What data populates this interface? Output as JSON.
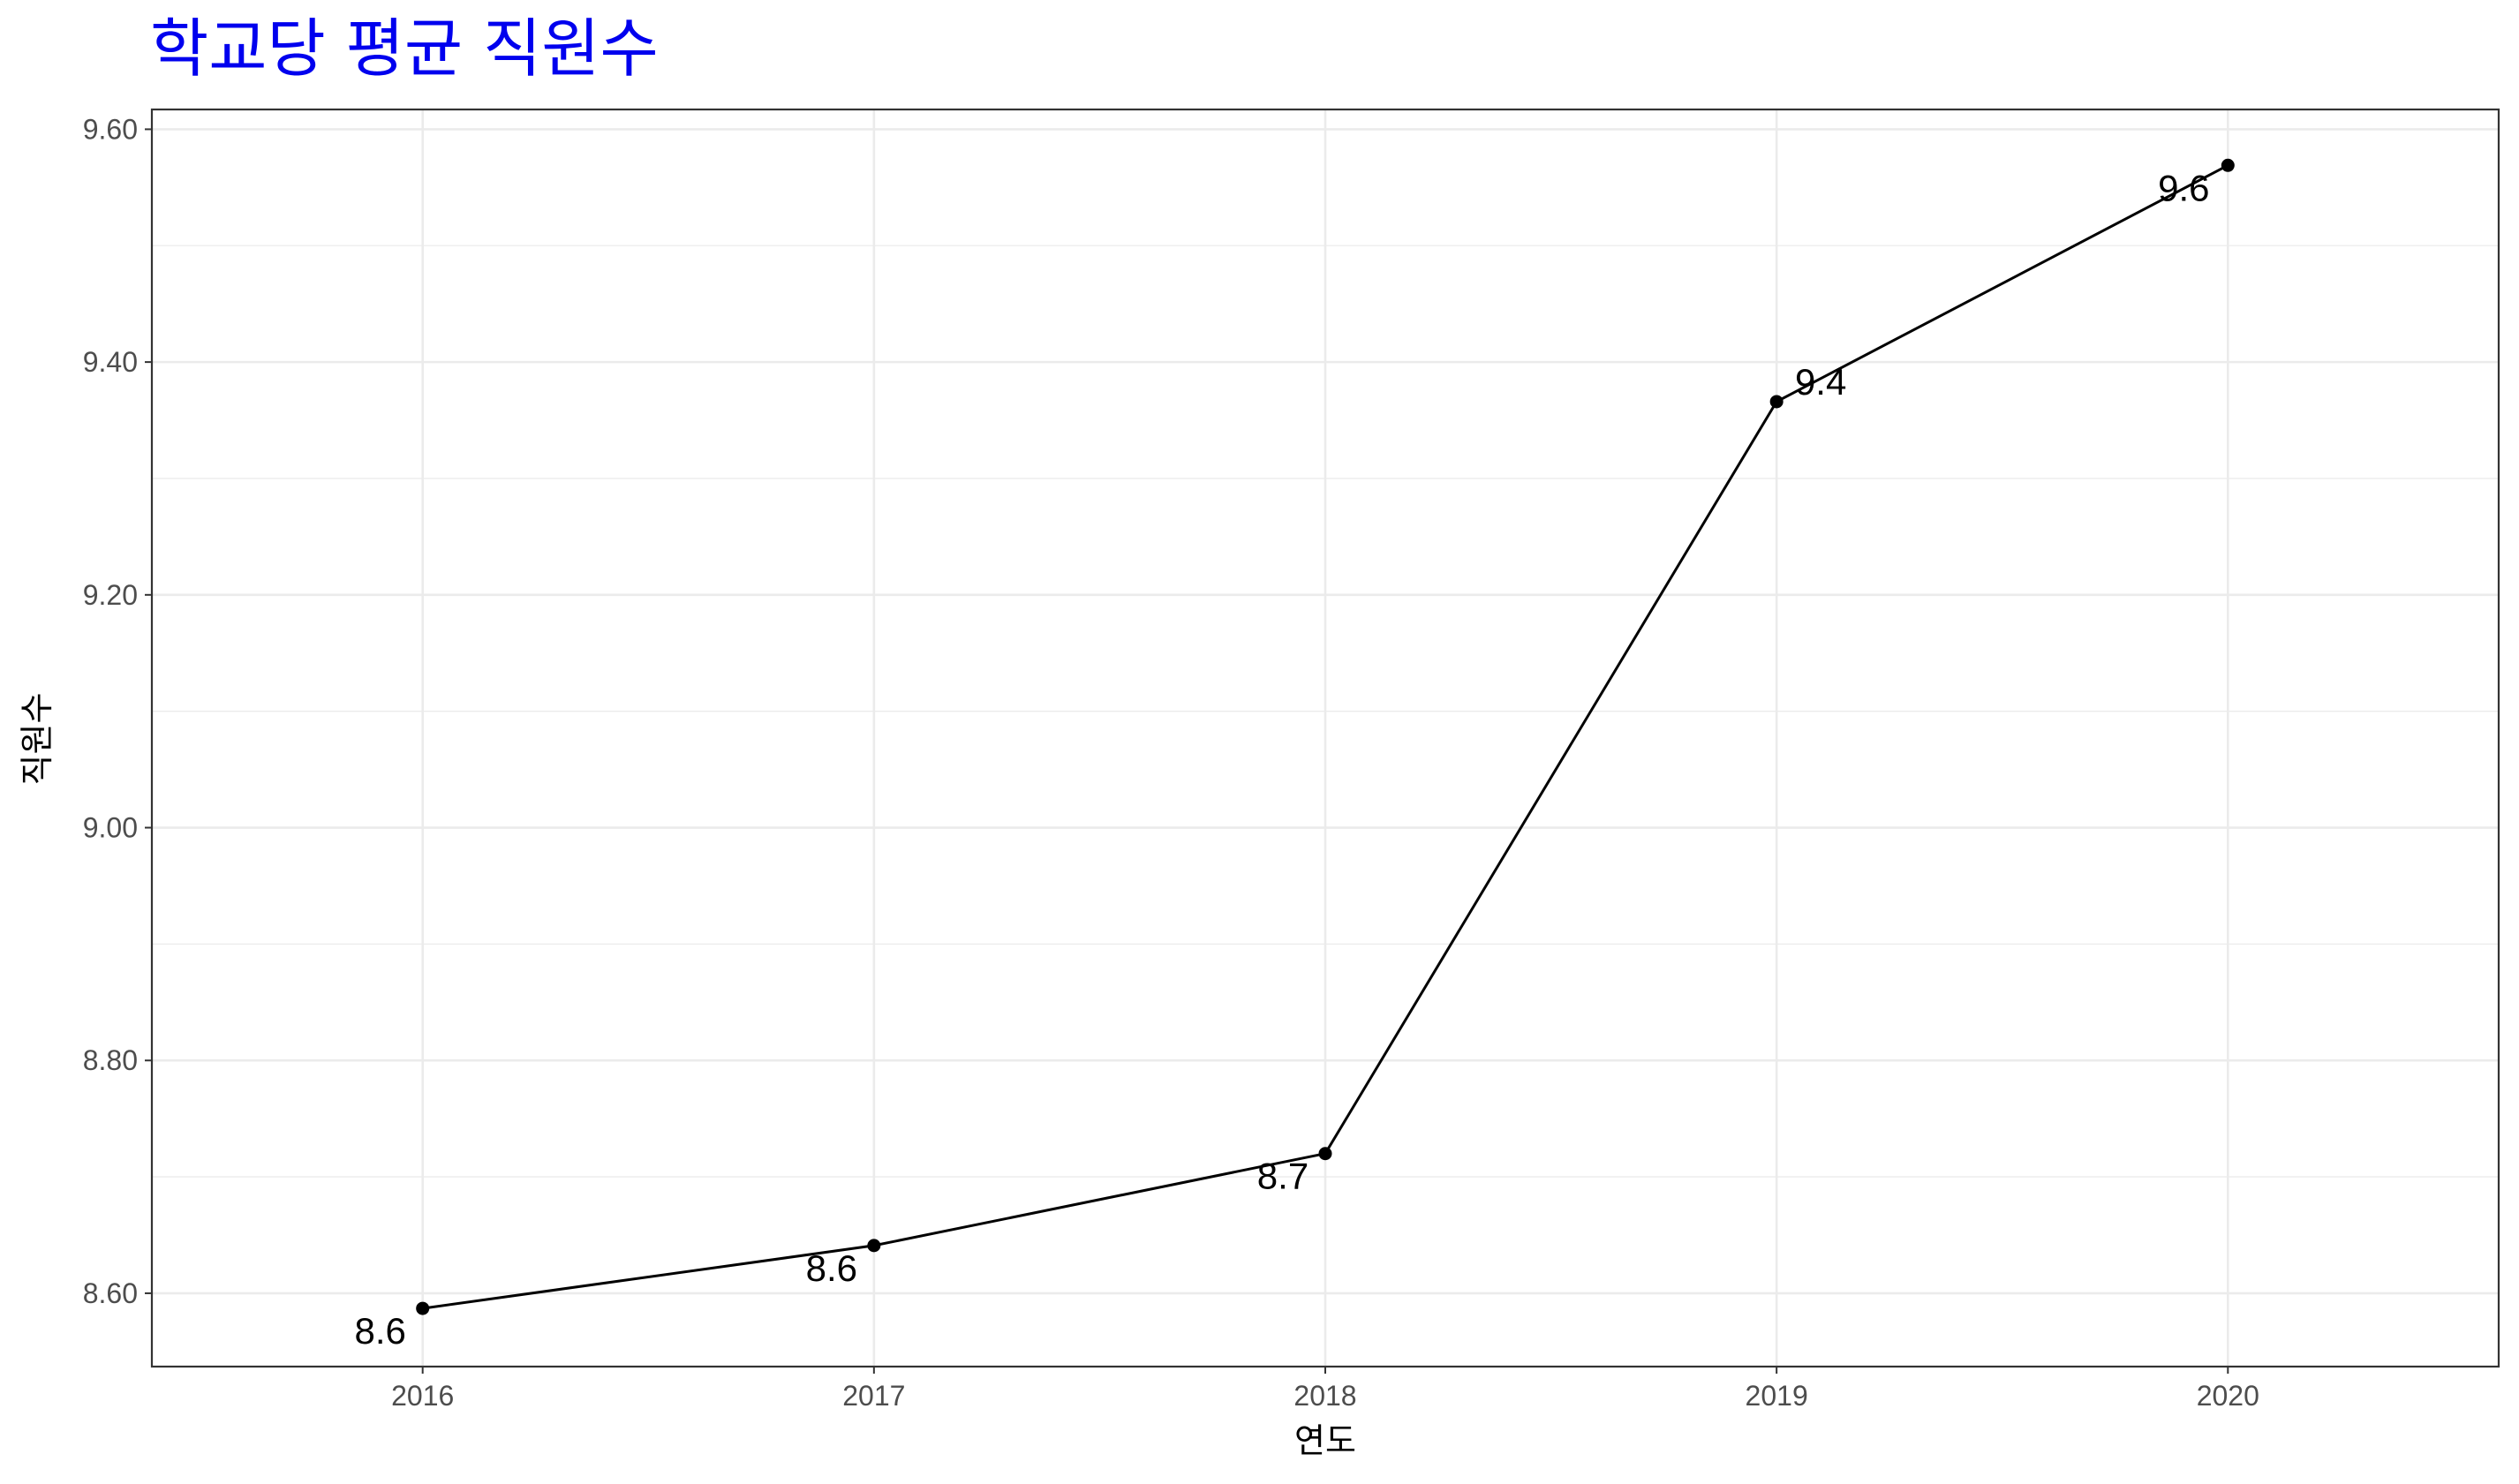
{
  "chart_data": {
    "type": "line",
    "title": "학교당 평균 직원수",
    "xlabel": "연도",
    "ylabel": "직원수",
    "x": [
      2016,
      2017,
      2018,
      2019,
      2020
    ],
    "x_tick_labels": [
      "2016",
      "2017",
      "2018",
      "2019",
      "2020"
    ],
    "y": [
      8.587,
      8.641,
      8.72,
      9.366,
      9.569
    ],
    "data_labels": [
      "8.6",
      "8.6",
      "8.7",
      "9.4",
      "9.6"
    ],
    "y_ticks": [
      8.6,
      8.8,
      9.0,
      9.2,
      9.4,
      9.6
    ],
    "y_tick_labels": [
      "8.60",
      "8.80",
      "9.00",
      "9.20",
      "9.40",
      "9.60"
    ],
    "xlim": [
      2015.4,
      2020.6
    ],
    "ylim": [
      8.537,
      9.617
    ],
    "grid": true,
    "colors": {
      "title": "#0000ee",
      "line": "#000000",
      "grid": "#ebebeb",
      "panel_border": "#333333"
    }
  }
}
